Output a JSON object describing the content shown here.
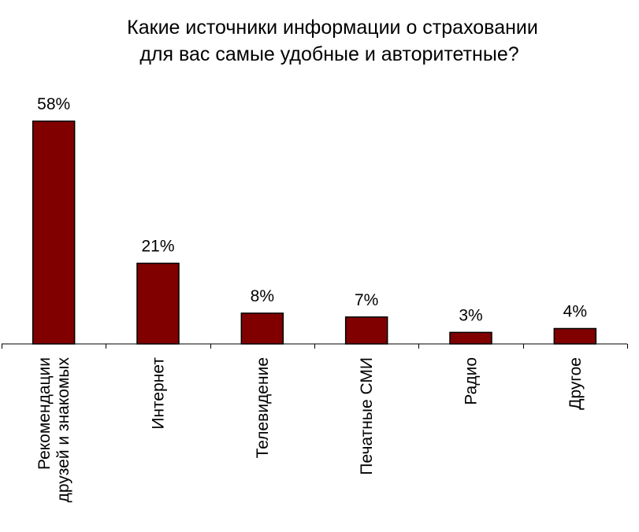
{
  "chart_data": {
    "type": "bar",
    "title_lines": [
      "Какие источники информации о страховании",
      "для вас самые удобные и авторитетные?"
    ],
    "categories": [
      [
        "Рекомендации",
        "друзей и знакомых"
      ],
      [
        "Интернет"
      ],
      [
        "Телевидение"
      ],
      [
        "Печатные СМИ"
      ],
      [
        "Радио"
      ],
      [
        "Другое"
      ]
    ],
    "values": [
      58,
      21,
      8,
      7,
      3,
      4
    ],
    "data_labels": [
      "58%",
      "21%",
      "8%",
      "7%",
      "3%",
      "4%"
    ],
    "unit": "%",
    "ylim": [
      0,
      58
    ],
    "grid": false,
    "legend": "none",
    "colors": {
      "bar_fill": "#800000",
      "bar_stroke": "#000000",
      "axis": "#000000"
    }
  }
}
